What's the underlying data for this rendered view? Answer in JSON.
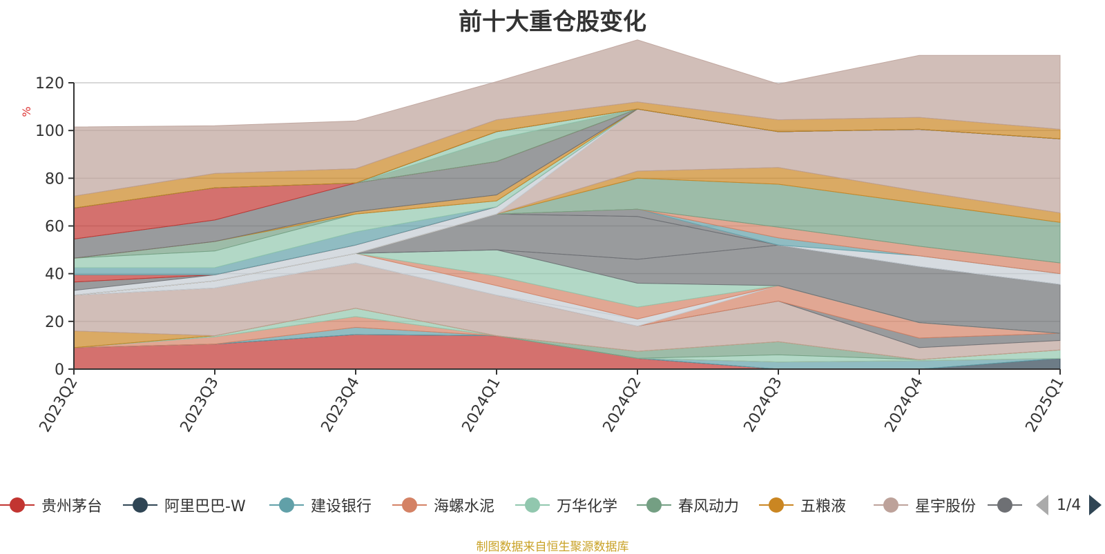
{
  "chart_data": {
    "type": "area",
    "title": "前十大重仓股变化",
    "ylabel": "%",
    "ylim": [
      0,
      120
    ],
    "yticks": [
      0,
      20,
      40,
      60,
      80,
      100,
      120
    ],
    "categories": [
      "2023Q2",
      "2023Q3",
      "2023Q4",
      "2024Q1",
      "2024Q2",
      "2024Q3",
      "2024Q4",
      "2025Q1"
    ],
    "band_order_bottom_to_top": [
      "贵州茅台",
      "阿里巴巴-W",
      "建设银行",
      "海螺水泥",
      "万华化学",
      "春风动力",
      "五粮液",
      "星宇股份",
      "series-9",
      "series-10",
      "series-11",
      "series-12",
      "series-13",
      "series-14",
      "series-15",
      "series-16",
      "series-17",
      "series-18",
      "series-19",
      "series-20",
      "series-21",
      "series-22",
      "series-23",
      "series-24",
      "series-25",
      "series-26",
      "series-27",
      "series-28",
      "series-29",
      "series-30",
      "series-31",
      "series-32",
      "series-33",
      "series-34",
      "series-35",
      "series-36",
      "series-37",
      "series-38"
    ],
    "series": [
      {
        "id": "贵州茅台",
        "legend": true,
        "color": "#c23531",
        "values": [
          9,
          10.5,
          14.5,
          14,
          4.5,
          0,
          0,
          0
        ]
      },
      {
        "id": "阿里巴巴-W",
        "legend": true,
        "color": "#2f4554",
        "values": [
          0,
          0,
          0,
          0,
          0,
          0,
          0,
          4.5
        ]
      },
      {
        "id": "建设银行",
        "legend": true,
        "color": "#61a0a8",
        "values": [
          0,
          0,
          3,
          0,
          0,
          3,
          3.5,
          0
        ]
      },
      {
        "id": "海螺水泥",
        "legend": true,
        "color": "#d48265",
        "values": [
          0,
          3,
          4.5,
          0,
          0,
          0,
          0,
          0
        ]
      },
      {
        "id": "万华化学",
        "legend": true,
        "color": "#91c7ae",
        "values": [
          0,
          0.5,
          3.5,
          0,
          0,
          3,
          0.5,
          3.5
        ]
      },
      {
        "id": "春风动力",
        "legend": true,
        "color": "#749f83",
        "values": [
          0,
          0,
          0,
          0,
          3,
          5.5,
          0,
          0
        ]
      },
      {
        "id": "五粮液",
        "legend": true,
        "color": "#ca8622",
        "values": [
          7,
          0,
          0,
          0,
          0,
          0,
          0,
          0
        ]
      },
      {
        "id": "星宇股份",
        "legend": true,
        "color": "#bda29a",
        "values": [
          15,
          20,
          19,
          17,
          10.5,
          17,
          5,
          4
        ]
      },
      {
        "id": "series-9",
        "legend": true,
        "color": "#6e7074",
        "values": [
          0,
          0,
          0,
          0,
          0,
          0,
          4,
          3
        ]
      },
      {
        "id": "series-10",
        "legend": false,
        "color": "#d48265",
        "values": [
          0,
          0,
          0,
          0,
          0,
          6.5,
          6.5,
          0
        ]
      },
      {
        "id": "series-11",
        "legend": false,
        "color": "#c4ccd3",
        "values": [
          0,
          0,
          0,
          0,
          3,
          0,
          0,
          0
        ]
      },
      {
        "id": "series-12",
        "legend": false,
        "color": "#c4ccd3",
        "values": [
          0,
          3,
          4,
          4,
          0,
          0,
          0,
          0
        ]
      },
      {
        "id": "series-13",
        "legend": false,
        "color": "#d48265",
        "values": [
          0,
          0,
          0,
          4,
          5,
          0,
          0,
          0
        ]
      },
      {
        "id": "series-14",
        "legend": false,
        "color": "#91c7ae",
        "values": [
          0,
          0,
          0,
          11,
          10,
          0,
          0,
          0
        ]
      },
      {
        "id": "series-15",
        "legend": false,
        "color": "#6e7074",
        "values": [
          0,
          0,
          0,
          0,
          10,
          17,
          23.5,
          20.5
        ]
      },
      {
        "id": "series-16",
        "legend": false,
        "color": "#6e7074",
        "values": [
          0,
          0,
          0,
          15,
          18,
          0,
          0,
          0
        ]
      },
      {
        "id": "series-17",
        "legend": false,
        "color": "#6e7074",
        "values": [
          0,
          0,
          0,
          0,
          3,
          0,
          0,
          0
        ]
      },
      {
        "id": "series-18",
        "legend": false,
        "color": "#c4ccd3",
        "values": [
          0,
          0,
          0,
          0,
          0,
          0,
          4.5,
          4.5
        ]
      },
      {
        "id": "series-19",
        "legend": false,
        "color": "#61a0a8",
        "values": [
          0,
          0,
          0,
          0,
          0,
          3,
          0,
          0
        ]
      },
      {
        "id": "series-20",
        "legend": false,
        "color": "#d48265",
        "values": [
          0,
          0,
          0,
          0,
          0,
          4.5,
          4,
          4.5
        ]
      },
      {
        "id": "series-21",
        "legend": false,
        "color": "#749f83",
        "values": [
          0,
          0,
          0,
          0,
          13,
          18,
          18,
          17
        ]
      },
      {
        "id": "series-22",
        "legend": false,
        "color": "#ca8622",
        "values": [
          0,
          0,
          0,
          0,
          3,
          7,
          5,
          4
        ]
      },
      {
        "id": "series-23",
        "legend": false,
        "color": "#bda29a",
        "values": [
          0,
          0,
          0,
          0,
          26,
          15,
          26,
          31
        ]
      },
      {
        "id": "series-24",
        "legend": false,
        "color": "#c4ccd3",
        "values": [
          2,
          2.5,
          3.5,
          3,
          0,
          0,
          0,
          0
        ]
      },
      {
        "id": "series-25",
        "legend": false,
        "color": "#6e7074",
        "values": [
          3.5,
          0,
          0,
          0,
          0,
          0,
          0,
          0
        ]
      },
      {
        "id": "series-26",
        "legend": false,
        "color": "#c23531",
        "values": [
          3,
          0,
          0,
          0,
          0,
          0,
          0,
          0
        ]
      },
      {
        "id": "series-27",
        "legend": false,
        "color": "#61a0a8",
        "values": [
          3,
          3,
          5.5,
          0,
          0,
          0,
          0,
          0
        ]
      },
      {
        "id": "series-28",
        "legend": false,
        "color": "#91c7ae",
        "values": [
          4,
          7,
          7.5,
          2.5,
          0,
          0,
          0,
          0
        ]
      },
      {
        "id": "series-29",
        "legend": false,
        "color": "#749f83",
        "values": [
          0,
          4,
          0,
          0,
          0,
          0,
          0,
          0
        ]
      },
      {
        "id": "series-30",
        "legend": false,
        "color": "#ca8622",
        "values": [
          0,
          0,
          1,
          2.5,
          0,
          0,
          0,
          0
        ]
      },
      {
        "id": "series-31",
        "legend": false,
        "color": "#6e7074",
        "values": [
          8,
          9,
          12,
          14,
          0,
          0,
          0,
          0
        ]
      },
      {
        "id": "series-32",
        "legend": false,
        "color": "#c23531",
        "values": [
          13,
          13.5,
          0,
          0,
          0,
          0,
          0,
          0
        ]
      },
      {
        "id": "series-33",
        "legend": false,
        "color": "#749f83",
        "values": [
          0,
          0,
          0,
          9.5,
          0,
          0,
          0,
          0
        ]
      },
      {
        "id": "series-34",
        "legend": false,
        "color": "#91c7ae",
        "values": [
          0,
          0,
          0,
          3,
          0,
          0,
          0,
          0
        ]
      },
      {
        "id": "series-35",
        "legend": false,
        "color": "#749f83",
        "values": [
          0,
          0,
          0,
          0,
          0,
          0,
          0,
          0
        ]
      },
      {
        "id": "series-36",
        "legend": false,
        "color": "#2f4554",
        "values": [
          0,
          0,
          0,
          0,
          0,
          0,
          0,
          0
        ]
      },
      {
        "id": "series-37",
        "legend": false,
        "color": "#ca8622",
        "values": [
          5,
          6,
          6,
          5,
          3,
          5,
          5,
          4
        ]
      },
      {
        "id": "series-38",
        "legend": false,
        "color": "#bda29a",
        "values": [
          29,
          20,
          20,
          16,
          26,
          15,
          26,
          31
        ]
      }
    ]
  },
  "legend": {
    "items": [
      {
        "label": "贵州茅台",
        "color": "#c23531"
      },
      {
        "label": "阿里巴巴-W",
        "color": "#2f4554"
      },
      {
        "label": "建设银行",
        "color": "#61a0a8"
      },
      {
        "label": "海螺水泥",
        "color": "#d48265"
      },
      {
        "label": "万华化学",
        "color": "#91c7ae"
      },
      {
        "label": "春风动力",
        "color": "#749f83"
      },
      {
        "label": "五粮液",
        "color": "#ca8622"
      },
      {
        "label": "星宇股份",
        "color": "#bda29a"
      },
      {
        "label": "",
        "color": "#6e7074"
      }
    ],
    "page": "1/4"
  },
  "source_note": "制图数据来自恒生聚源数据库"
}
